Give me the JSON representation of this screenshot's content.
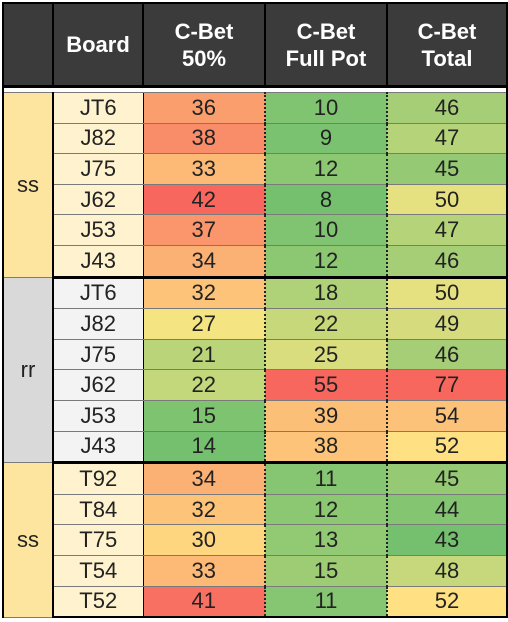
{
  "header": {
    "blank": "",
    "board": "Board",
    "col1": [
      "C-Bet",
      "50%"
    ],
    "col2": [
      "C-Bet",
      "Full Pot"
    ],
    "col3": [
      "C-Bet",
      "Total"
    ]
  },
  "groups": [
    {
      "label": "ss",
      "color": "#fde5a0",
      "board_color": "#fff3cf",
      "rows": [
        {
          "board": "JT6",
          "c50": "36",
          "full": "10",
          "total": "46"
        },
        {
          "board": "J82",
          "c50": "38",
          "full": "9",
          "total": "47"
        },
        {
          "board": "J75",
          "c50": "33",
          "full": "12",
          "total": "45"
        },
        {
          "board": "J62",
          "c50": "42",
          "full": "8",
          "total": "50"
        },
        {
          "board": "J53",
          "c50": "37",
          "full": "10",
          "total": "47"
        },
        {
          "board": "J43",
          "c50": "34",
          "full": "12",
          "total": "46"
        }
      ]
    },
    {
      "label": "rr",
      "color": "#d9d9d9",
      "board_color": "#f3f3f3",
      "rows": [
        {
          "board": "JT6",
          "c50": "32",
          "full": "18",
          "total": "50"
        },
        {
          "board": "J82",
          "c50": "27",
          "full": "22",
          "total": "49"
        },
        {
          "board": "J75",
          "c50": "21",
          "full": "25",
          "total": "46"
        },
        {
          "board": "J62",
          "c50": "22",
          "full": "55",
          "total": "77"
        },
        {
          "board": "J53",
          "c50": "15",
          "full": "39",
          "total": "54"
        },
        {
          "board": "J43",
          "c50": "14",
          "full": "38",
          "total": "52"
        }
      ]
    },
    {
      "label": "ss",
      "color": "#fde5a0",
      "board_color": "#fff3cf",
      "rows": [
        {
          "board": "T92",
          "c50": "34",
          "full": "11",
          "total": "45"
        },
        {
          "board": "T84",
          "c50": "32",
          "full": "12",
          "total": "44"
        },
        {
          "board": "T75",
          "c50": "30",
          "full": "13",
          "total": "43"
        },
        {
          "board": "T54",
          "c50": "33",
          "full": "15",
          "total": "48"
        },
        {
          "board": "T52",
          "c50": "41",
          "full": "11",
          "total": "52"
        }
      ]
    }
  ],
  "heat_colors": {
    "low": "#74c06e",
    "mid": "#ffe884",
    "high": "#f7675e"
  }
}
